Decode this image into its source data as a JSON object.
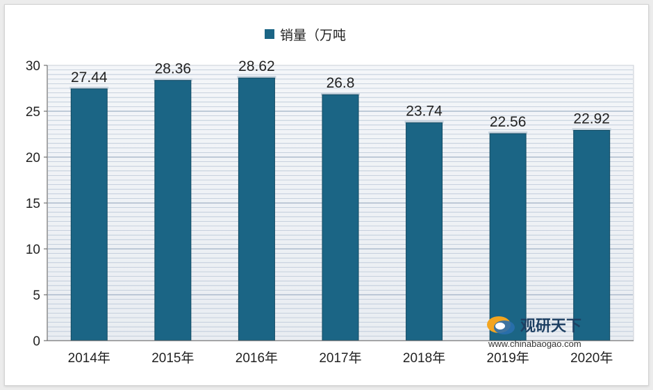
{
  "chart_data": {
    "type": "bar",
    "categories": [
      "2014年",
      "2015年",
      "2016年",
      "2017年",
      "2018年",
      "2019年",
      "2020年"
    ],
    "series": [
      {
        "name": "销量（万吨",
        "values": [
          27.44,
          28.36,
          28.62,
          26.8,
          23.74,
          22.56,
          22.92
        ]
      }
    ],
    "data_labels": [
      "27.44",
      "28.36",
      "28.62",
      "26.8",
      "23.74",
      "22.56",
      "22.92"
    ],
    "ylim": [
      0,
      30
    ],
    "yticks": [
      "0",
      "5",
      "10",
      "15",
      "20",
      "25",
      "30"
    ],
    "legend_position": "top-center",
    "grid": true,
    "bar_color": "#1b6585",
    "grid_color": "#b9c6d6"
  },
  "watermark": {
    "brand": "观研天下",
    "url": "www.chinabaogao.com"
  }
}
